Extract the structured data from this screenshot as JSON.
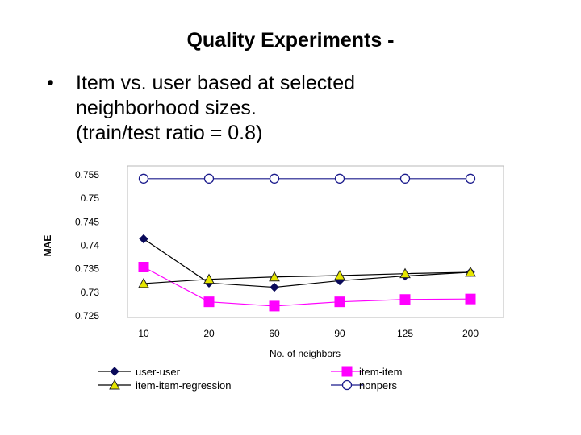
{
  "slide": {
    "title": "Quality Experiments -",
    "bullet_symbol": "•",
    "bullet_lines": [
      "Item vs. user based at selected",
      "neighborhood sizes.",
      "(train/test ratio = 0.8)"
    ]
  },
  "chart_data": {
    "type": "line",
    "title": "",
    "xlabel": "No. of neighbors",
    "ylabel": "MAE",
    "categories": [
      "10",
      "20",
      "60",
      "90",
      "125",
      "200"
    ],
    "yticks": [
      "0.755",
      "0.75",
      "0.745",
      "0.74",
      "0.735",
      "0.73",
      "0.725"
    ],
    "ylim": [
      0.725,
      0.755
    ],
    "grid": false,
    "legend_position": "bottom",
    "series": [
      {
        "name": "user-user",
        "values": [
          0.7412,
          0.7318,
          0.7309,
          0.7323,
          0.7333,
          0.7341
        ],
        "color": "#0a0a5a",
        "marker": "diamond"
      },
      {
        "name": "item-item",
        "values": [
          0.7352,
          0.7278,
          0.7269,
          0.7278,
          0.7283,
          0.7284
        ],
        "color": "#ff00ff",
        "marker": "square"
      },
      {
        "name": "item-item-regression",
        "values": [
          0.7317,
          0.7326,
          0.7331,
          0.7334,
          0.7338,
          0.7341
        ],
        "color": "#e6e600",
        "marker": "triangle"
      },
      {
        "name": "nonpers",
        "values": [
          0.754,
          0.754,
          0.754,
          0.754,
          0.754,
          0.754
        ],
        "color": "#1a1a8c",
        "marker": "circle"
      }
    ]
  }
}
